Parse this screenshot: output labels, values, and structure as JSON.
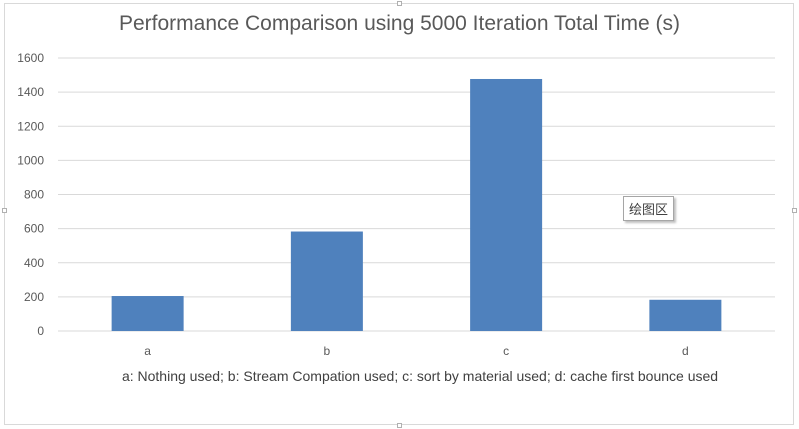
{
  "chart_data": {
    "type": "bar",
    "title": "Performance Comparison using 5000 Iteration Total Time (s)",
    "categories": [
      "a",
      "b",
      "c",
      "d"
    ],
    "values": [
      205,
      583,
      1477,
      183
    ],
    "xlabel": "a: Nothing used;  b: Stream Compation used; c: sort by material used; d: cache first bounce used",
    "ylabel": "",
    "ylim": [
      0,
      1600
    ],
    "yticks": [
      0,
      200,
      400,
      600,
      800,
      1000,
      1200,
      1400,
      1600
    ],
    "grid": true,
    "legend": "none",
    "bar_color": "#4f81bd",
    "grid_color": "#d9d9d9"
  },
  "overlay": {
    "tooltip_text": "绘图区"
  }
}
